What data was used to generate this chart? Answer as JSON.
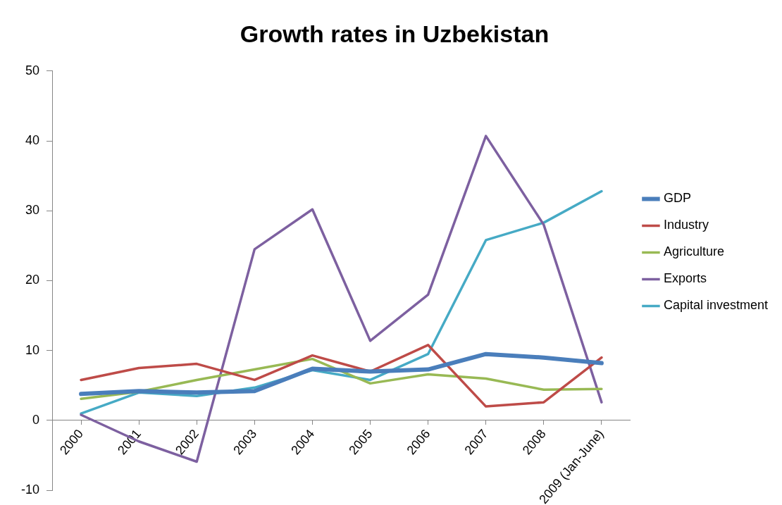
{
  "chart_data": {
    "type": "line",
    "title": "Growth rates in Uzbekistan",
    "categories": [
      "2000",
      "2001",
      "2002",
      "2003",
      "2004",
      "2005",
      "2006",
      "2007",
      "2008",
      "2009 (Jan-June)"
    ],
    "series": [
      {
        "name": "GDP",
        "color": "#4a7ebb",
        "values": [
          3.8,
          4.2,
          4.0,
          4.2,
          7.4,
          7.0,
          7.3,
          9.5,
          9.0,
          8.2
        ]
      },
      {
        "name": "Industry",
        "color": "#be4b48",
        "values": [
          5.8,
          7.5,
          8.1,
          5.8,
          9.3,
          7.0,
          10.8,
          2.0,
          2.6,
          9.0
        ]
      },
      {
        "name": "Agriculture",
        "color": "#98b954",
        "values": [
          3.1,
          4.1,
          5.8,
          7.3,
          8.8,
          5.3,
          6.6,
          6.0,
          4.4,
          4.5
        ]
      },
      {
        "name": "Exports",
        "color": "#7d60a0",
        "values": [
          0.8,
          -3.0,
          -5.9,
          24.5,
          30.2,
          11.4,
          18.0,
          40.7,
          28.0,
          2.6
        ]
      },
      {
        "name": "Capital investment",
        "color": "#46aac5",
        "values": [
          1.0,
          4.0,
          3.5,
          4.7,
          7.2,
          5.8,
          9.5,
          25.8,
          28.3,
          32.8
        ]
      }
    ],
    "ylim": [
      -10,
      50
    ],
    "yticks": [
      -10,
      0,
      10,
      20,
      30,
      40,
      50
    ],
    "grid": false,
    "legend": "right",
    "marker": "none",
    "line_style": "solid"
  }
}
